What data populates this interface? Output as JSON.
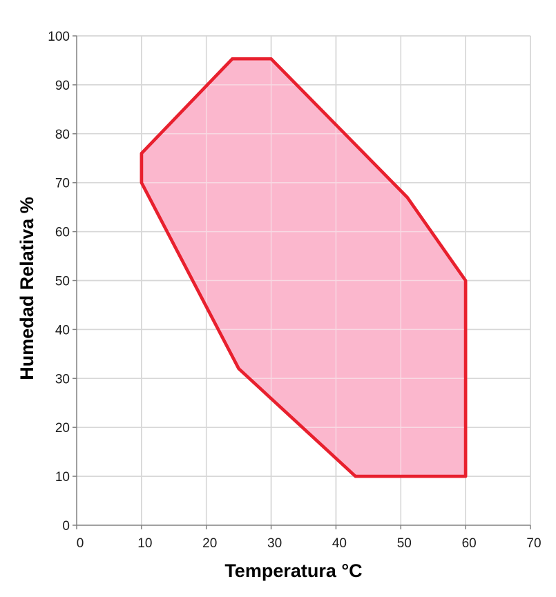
{
  "chart_data": {
    "type": "area",
    "xlabel": "Temperatura °C",
    "ylabel": "Humedad Relativa %",
    "xlim": [
      0,
      70
    ],
    "ylim": [
      0,
      100
    ],
    "xticks": [
      0,
      10,
      20,
      30,
      40,
      50,
      60,
      70
    ],
    "yticks": [
      0,
      10,
      20,
      30,
      40,
      50,
      60,
      70,
      80,
      90,
      100
    ],
    "grid": true,
    "series": [
      {
        "points": [
          [
            10,
            76
          ],
          [
            24,
            95.3
          ],
          [
            30,
            95.3
          ],
          [
            51,
            67
          ],
          [
            60,
            50
          ],
          [
            60,
            10
          ],
          [
            43,
            10
          ],
          [
            25,
            32
          ],
          [
            10,
            70
          ]
        ]
      }
    ],
    "colors": {
      "fill": "#fbadc6",
      "stroke": "#e8202e",
      "grid": "#a6a6a6"
    }
  }
}
